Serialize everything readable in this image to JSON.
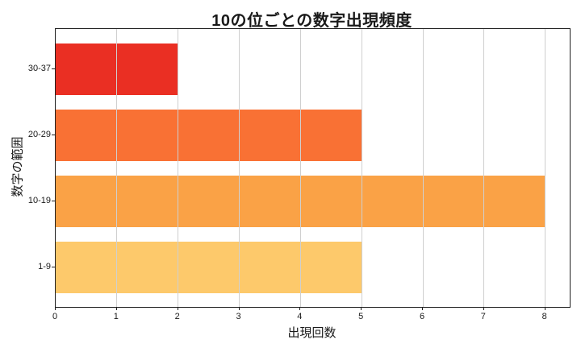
{
  "chart_data": {
    "type": "bar",
    "orientation": "horizontal",
    "title": "10の位ごとの数字出現頻度",
    "xlabel": "出現回数",
    "ylabel": "数字の範囲",
    "categories": [
      "30-37",
      "20-29",
      "10-19",
      "1-9"
    ],
    "values": [
      2,
      5,
      8,
      5
    ],
    "bar_colors": [
      "#ea2f23",
      "#f97134",
      "#faa246",
      "#fdc96b"
    ],
    "x_ticks": [
      0,
      1,
      2,
      3,
      4,
      5,
      6,
      7,
      8
    ],
    "xlim": [
      0,
      8.4
    ],
    "grid": true,
    "legend": "none",
    "grid_color": "#cfcfcf",
    "axis_color": "#1f1f1f",
    "background": "#ffffff"
  }
}
